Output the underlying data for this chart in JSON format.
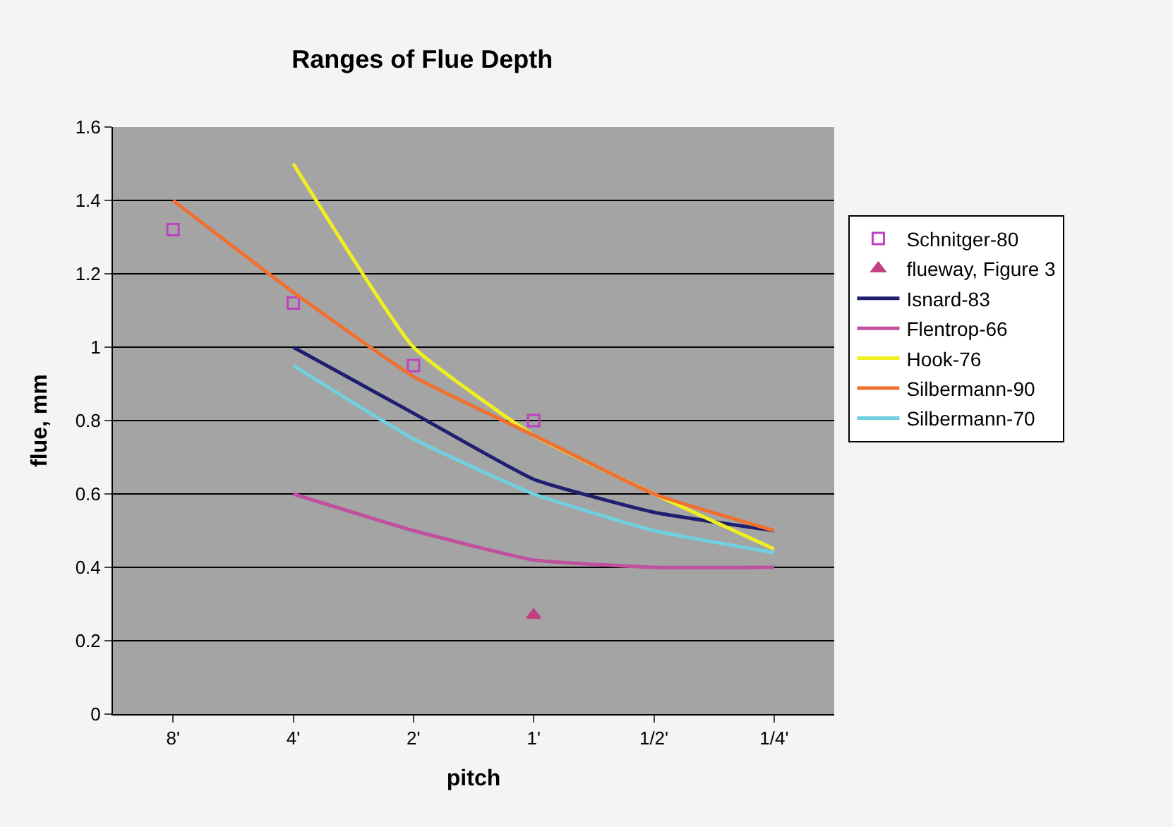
{
  "chart_data": {
    "type": "line",
    "title": "Ranges of Flue Depth",
    "xlabel": "pitch",
    "ylabel": "flue, mm",
    "categories": [
      "8'",
      "4'",
      "2'",
      "1'",
      "1/2'",
      "1/4'"
    ],
    "series": [
      {
        "name": "Schnitger-80",
        "type": "scatter",
        "marker": "square",
        "color": "#c040c0",
        "values": [
          1.32,
          1.12,
          0.95,
          0.8,
          null,
          null
        ]
      },
      {
        "name": "flueway, Figure 3",
        "type": "scatter",
        "marker": "triangle",
        "color": "#c04080",
        "values": [
          null,
          null,
          null,
          0.27,
          null,
          null
        ]
      },
      {
        "name": "Isnard-83",
        "color": "#1f1f70",
        "values": [
          null,
          1.0,
          0.82,
          0.64,
          0.55,
          0.5
        ]
      },
      {
        "name": "Flentrop-66",
        "color": "#c050a0",
        "values": [
          null,
          0.6,
          0.5,
          0.42,
          0.4,
          0.4
        ]
      },
      {
        "name": "Hook-76",
        "color": "#f0f020",
        "values": [
          null,
          1.5,
          1.0,
          0.76,
          0.6,
          0.45
        ]
      },
      {
        "name": "Silbermann-90",
        "color": "#f07030",
        "values": [
          1.4,
          1.15,
          0.92,
          0.76,
          0.6,
          0.5
        ]
      },
      {
        "name": "Silbermann-70",
        "color": "#70d0e0",
        "values": [
          null,
          0.95,
          0.75,
          0.6,
          0.5,
          0.44
        ]
      }
    ],
    "ylim": [
      0,
      1.6
    ],
    "yticks": [
      0,
      0.2,
      0.4,
      0.6,
      0.8,
      1,
      1.2,
      1.4,
      1.6
    ],
    "grid": "y",
    "legend": "right",
    "line_style": "solid"
  }
}
